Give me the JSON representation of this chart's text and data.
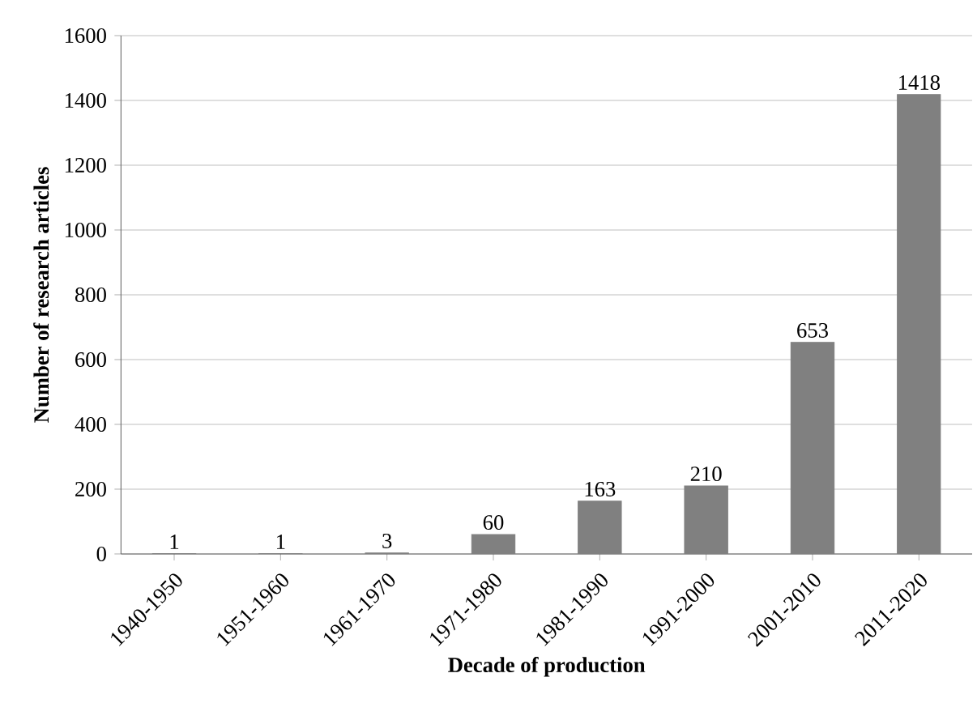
{
  "chart_data": {
    "type": "bar",
    "xlabel": "Decade of production",
    "ylabel": "Number of research articles",
    "categories": [
      "1940-1950",
      "1951-1960",
      "1961-1970",
      "1971-1980",
      "1981-1990",
      "1991-2000",
      "2001-2010",
      "2011-2020"
    ],
    "values": [
      1,
      1,
      3,
      60,
      163,
      210,
      653,
      1418
    ],
    "color": "#808080",
    "ylim": [
      0,
      1600
    ],
    "yticks": [
      0,
      200,
      400,
      600,
      800,
      1000,
      1200,
      1400,
      1600
    ],
    "grid": "y",
    "data_labels": true
  }
}
